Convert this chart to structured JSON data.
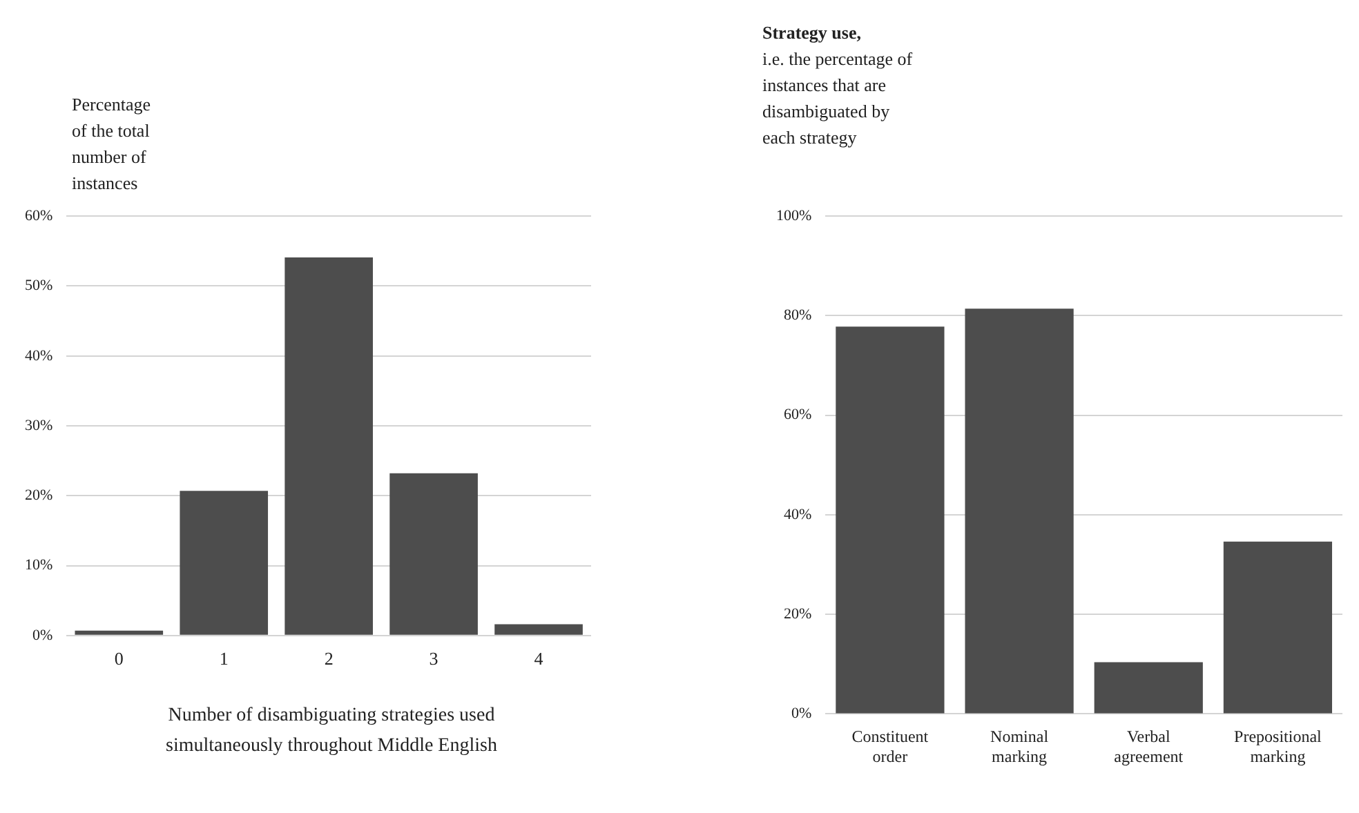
{
  "chart_data": [
    {
      "type": "bar",
      "ylabel": "Percentage of the total number of instances",
      "xlabel": "Number of disambiguating strategies used simultaneously throughout Middle English",
      "categories": [
        "0",
        "1",
        "2",
        "3",
        "4"
      ],
      "values": [
        0.7,
        20.7,
        54.1,
        23.2,
        1.6
      ],
      "color": "#4d4d4d",
      "ylim": [
        0,
        60
      ],
      "yticks": [
        {
          "value": 0,
          "label": "0%"
        },
        {
          "value": 10,
          "label": "10%"
        },
        {
          "value": 20,
          "label": "20%"
        },
        {
          "value": 30,
          "label": "30%"
        },
        {
          "value": 40,
          "label": "40%"
        },
        {
          "value": 50,
          "label": "50%"
        },
        {
          "value": 60,
          "label": "60%"
        }
      ],
      "grid": "y",
      "legend": false
    },
    {
      "type": "bar",
      "title": "Strategy use,",
      "ylabel": "i.e. the percentage of instances that are disambiguated by each strategy",
      "categories": [
        "Constituent order",
        "Nominal marking",
        "Verbal agreement",
        "Prepositional marking"
      ],
      "values": [
        77.8,
        81.4,
        10.4,
        34.6
      ],
      "color": "#4d4d4d",
      "ylim": [
        0,
        100
      ],
      "yticks": [
        {
          "value": 0,
          "label": "0%"
        },
        {
          "value": 20,
          "label": "20%"
        },
        {
          "value": 40,
          "label": "40%"
        },
        {
          "value": 60,
          "label": "60%"
        },
        {
          "value": 80,
          "label": "80%"
        },
        {
          "value": 100,
          "label": "100%"
        }
      ],
      "grid": "y",
      "legend": false
    }
  ]
}
